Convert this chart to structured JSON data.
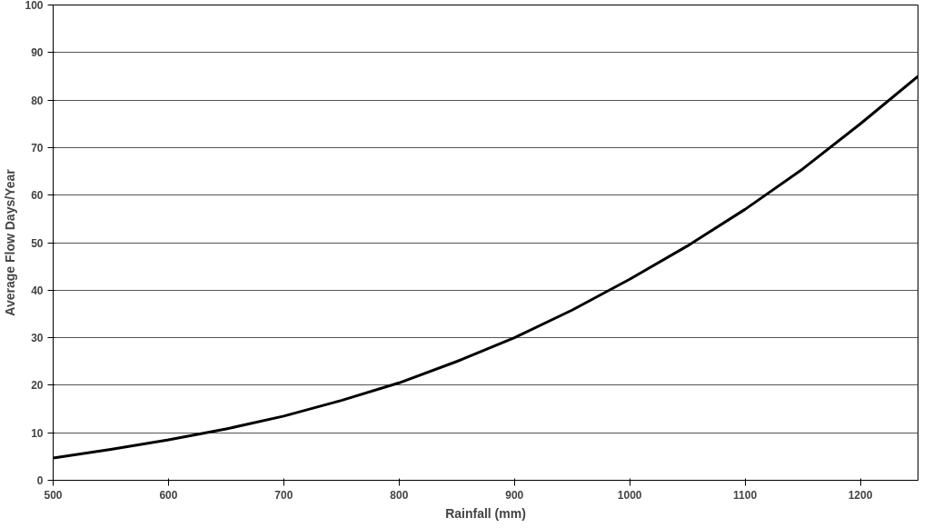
{
  "chart_data": {
    "type": "line",
    "xlabel": "Rainfall (mm)",
    "ylabel": "Average Flow Days/Year",
    "x": [
      500,
      550,
      600,
      650,
      700,
      750,
      800,
      850,
      900,
      950,
      1000,
      1050,
      1100,
      1150,
      1200,
      1250
    ],
    "series": [
      {
        "color": "#000000",
        "values": [
          4.7,
          6.5,
          8.5,
          10.8,
          13.5,
          16.8,
          20.5,
          25,
          30,
          35.8,
          42.3,
          49.3,
          57,
          65.5,
          75,
          85
        ]
      }
    ],
    "xlim": [
      500,
      1250
    ],
    "xticks": [
      500,
      600,
      700,
      800,
      900,
      1000,
      1100,
      1200
    ],
    "ylim": [
      0,
      100
    ],
    "yticks": [
      0,
      10,
      20,
      30,
      40,
      50,
      60,
      70,
      80,
      90,
      100
    ],
    "grid": "y",
    "marker": "none",
    "line_style": "solid"
  }
}
